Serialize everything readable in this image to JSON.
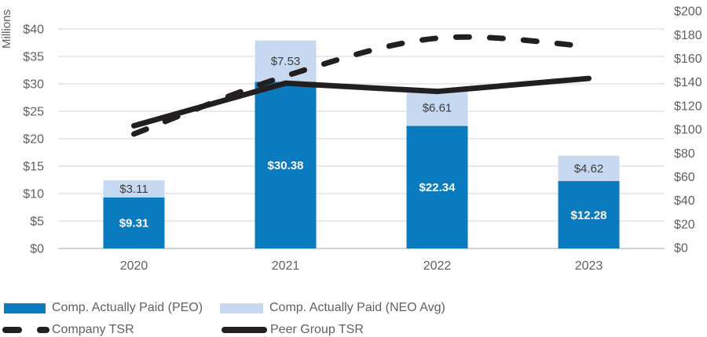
{
  "chart_data": {
    "type": "bar",
    "subtype": "stacked-bar-with-lines-combo",
    "categories": [
      "2020",
      "2021",
      "2022",
      "2023"
    ],
    "bar_series": [
      {
        "name": "Comp. Actually Paid (PEO)",
        "axis": "left",
        "color": "#0b7bc0",
        "values": [
          9.31,
          30.38,
          22.34,
          12.28
        ],
        "labels": [
          "$9.31",
          "$30.38",
          "$22.34",
          "$12.28"
        ],
        "label_color": "#ffffff"
      },
      {
        "name": "Comp. Actually Paid (NEO Avg)",
        "axis": "left",
        "color": "#c7d9f0",
        "values": [
          3.11,
          7.53,
          6.61,
          4.62
        ],
        "labels": [
          "$3.11",
          "$7.53",
          "$6.61",
          "$4.62"
        ],
        "label_color": "#3c3c3c"
      }
    ],
    "line_series": [
      {
        "name": "Company TSR",
        "axis": "right",
        "style": "dashed",
        "smooth": true,
        "color": "#231f20",
        "values": [
          96,
          145,
          177,
          170
        ]
      },
      {
        "name": "Peer Group TSR",
        "axis": "right",
        "style": "solid",
        "smooth": false,
        "color": "#231f20",
        "values": [
          103,
          139,
          132,
          143
        ]
      }
    ],
    "left_axis": {
      "title": "Millions",
      "min": 0,
      "max": 40,
      "step": 5,
      "tick_labels": [
        "$0",
        "$5",
        "$10",
        "$15",
        "$20",
        "$25",
        "$30",
        "$35",
        "$40"
      ]
    },
    "right_axis": {
      "min": 0,
      "max": 200,
      "step": 20,
      "tick_labels": [
        "$0",
        "$20",
        "$40",
        "$60",
        "$80",
        "$100",
        "$120",
        "$140",
        "$160",
        "$180",
        "$200"
      ]
    },
    "grid": "horizontal",
    "legend_position": "bottom"
  },
  "legend": {
    "items": [
      {
        "label": "Comp. Actually Paid (PEO)",
        "swatch": "bar",
        "color": "#0b7bc0"
      },
      {
        "label": "Comp. Actually Paid (NEO Avg)",
        "swatch": "bar",
        "color": "#c7d9f0"
      },
      {
        "label": "Company TSR",
        "swatch": "dashed-line",
        "color": "#231f20"
      },
      {
        "label": "Peer Group TSR",
        "swatch": "solid-line",
        "color": "#231f20"
      }
    ]
  },
  "colors": {
    "bar_primary": "#0b7bc0",
    "bar_secondary": "#c7d9f0",
    "line": "#231f20",
    "axis_text": "#606060",
    "gridline": "#dcdcdc",
    "baseline": "#d2d2d2"
  }
}
